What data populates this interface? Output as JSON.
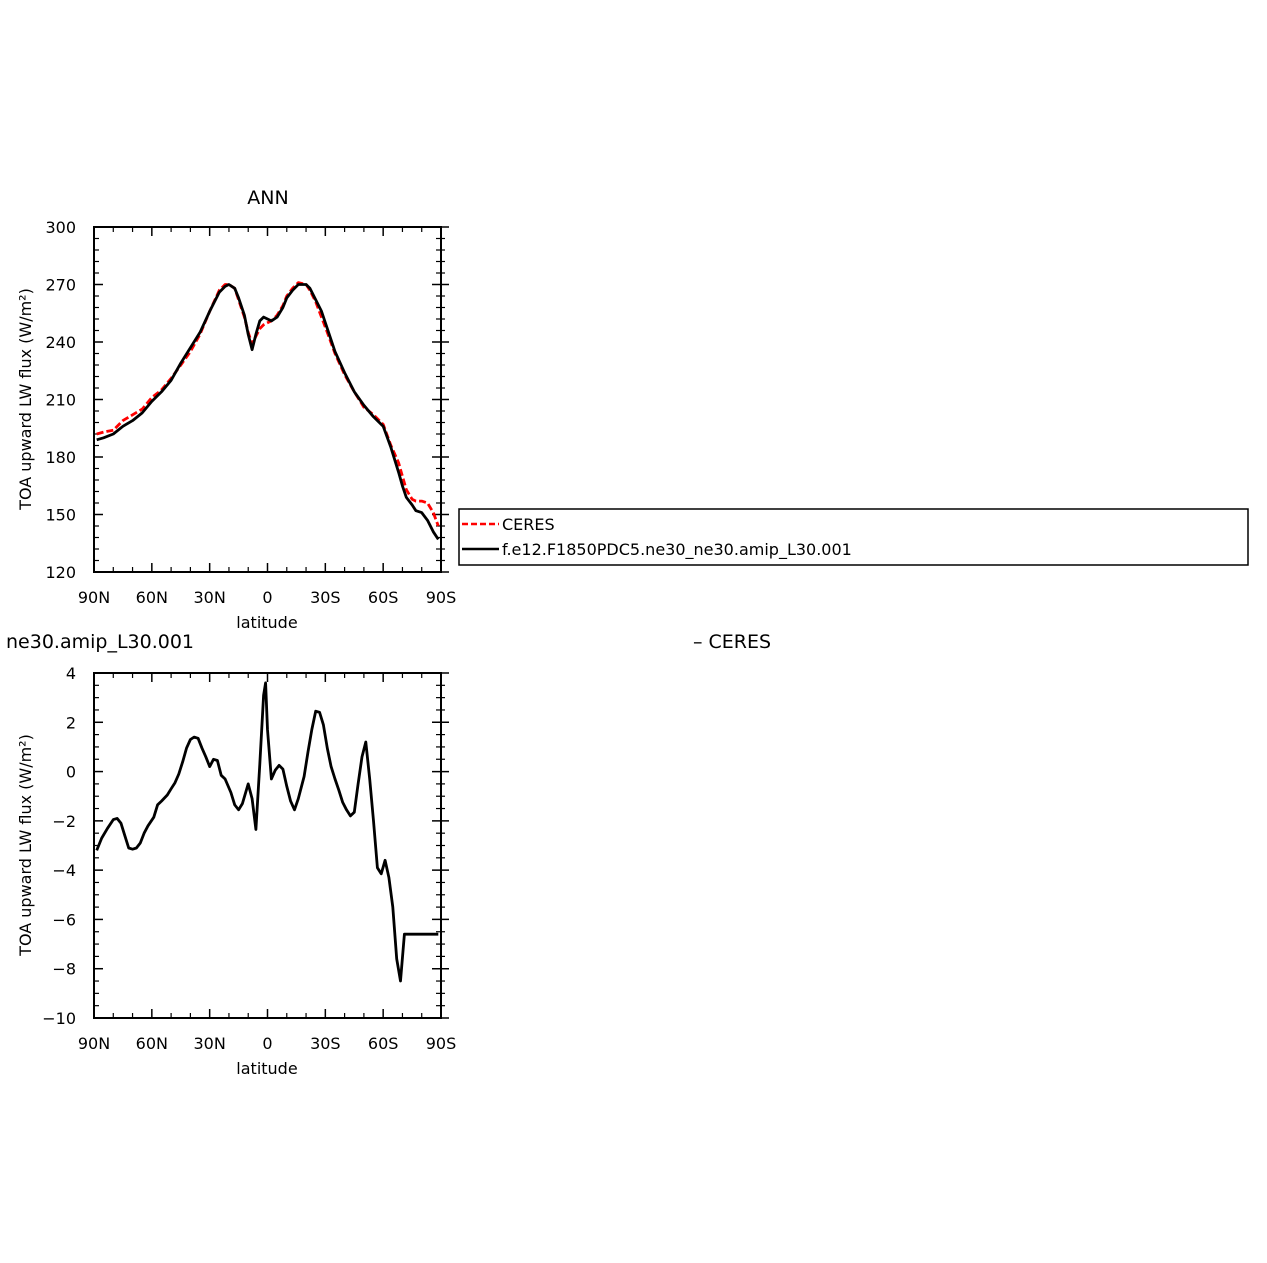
{
  "chart_data": [
    {
      "type": "line",
      "title": "ANN",
      "xlabel": "latitude",
      "ylabel": "TOA upward LW flux (W/m²)",
      "xlim": [
        90,
        -90
      ],
      "ylim": [
        120,
        300
      ],
      "xtick_values": [
        90,
        60,
        30,
        0,
        -30,
        -60,
        -90
      ],
      "xtick_labels": [
        "90N",
        "60N",
        "30N",
        "0",
        "30S",
        "60S",
        "90S"
      ],
      "yticks": [
        120,
        150,
        180,
        210,
        240,
        270,
        300
      ],
      "x": [
        88.6,
        85,
        80,
        75,
        70,
        65,
        60,
        55,
        50,
        45,
        40,
        35,
        30,
        25,
        22,
        20,
        17,
        15,
        12,
        10,
        8,
        6,
        4,
        2,
        0,
        -2,
        -5,
        -8,
        -10,
        -13,
        -16,
        -20,
        -22,
        -25,
        -28,
        -31,
        -35,
        -40,
        -45,
        -50,
        -55,
        -60,
        -64,
        -68,
        -70,
        -72,
        -75,
        -77,
        -80,
        -83,
        -86,
        -88.6
      ],
      "series": [
        {
          "name": "CERES",
          "color": "#ff0000",
          "dash": "dashed",
          "values": [
            192,
            193,
            194,
            199,
            202,
            205,
            211,
            215,
            221,
            228,
            235,
            244,
            256,
            267,
            270,
            270,
            268,
            262,
            253,
            245,
            239,
            243,
            247,
            249,
            250,
            251,
            254,
            259,
            264,
            268,
            271,
            270,
            267,
            261,
            253,
            245,
            234,
            223,
            214,
            206,
            202,
            197,
            186,
            177,
            170,
            163,
            158,
            157,
            157,
            156,
            151,
            144
          ]
        },
        {
          "name": "f.e12.F1850PDC5.ne30_ne30.amip_L30.001",
          "color": "#000000",
          "dash": "solid",
          "values": [
            189,
            190,
            192,
            196,
            199,
            203,
            209,
            214,
            220,
            229,
            237,
            245,
            256,
            266,
            269,
            270,
            268,
            263,
            254,
            244,
            236,
            244,
            251,
            253,
            252,
            251,
            253,
            258,
            263,
            267,
            270,
            270,
            268,
            262,
            256,
            247,
            235,
            224,
            214,
            207,
            201,
            196,
            185,
            172,
            165,
            159,
            155,
            152,
            151,
            147,
            141,
            137
          ]
        }
      ],
      "legend_position": "right"
    },
    {
      "type": "line",
      "title": "ne30.amip_L30.001",
      "title_right": "– CERES",
      "xlabel": "latitude",
      "ylabel": "TOA upward LW flux (W/m²)",
      "xlim": [
        90,
        -90
      ],
      "ylim": [
        -10,
        4
      ],
      "xtick_values": [
        90,
        60,
        30,
        0,
        -30,
        -60,
        -90
      ],
      "xtick_labels": [
        "90N",
        "60N",
        "30N",
        "0",
        "30S",
        "60S",
        "90S"
      ],
      "yticks": [
        -10,
        -8,
        -6,
        -4,
        -2,
        0,
        2,
        4
      ],
      "x": [
        88.6,
        86,
        83,
        80,
        78,
        76,
        74,
        72,
        70,
        68,
        66,
        64,
        62,
        59,
        57,
        55,
        52,
        50,
        48,
        46,
        44,
        42,
        40,
        38,
        36,
        34,
        32,
        30,
        28,
        26,
        24,
        22,
        19,
        17,
        15,
        13,
        10,
        8,
        6,
        4,
        2,
        1,
        0,
        -2,
        -4,
        -6,
        -8,
        -10,
        -12,
        -14,
        -16,
        -19,
        -21,
        -23,
        -25,
        -27,
        -29,
        -31,
        -33,
        -35,
        -37,
        -39,
        -41,
        -43,
        -45,
        -47,
        -49,
        -51,
        -53,
        -55,
        -57,
        -59,
        -61,
        -63,
        -65,
        -67,
        -69,
        -71,
        -73,
        -75,
        -77,
        -79,
        -81,
        -83,
        -85,
        -87,
        -88.6
      ],
      "series": [
        {
          "name": "",
          "color": "#000000",
          "dash": "solid",
          "values": [
            -3.2,
            -2.7,
            -2.3,
            -1.95,
            -1.9,
            -2.1,
            -2.6,
            -3.1,
            -3.15,
            -3.1,
            -2.9,
            -2.5,
            -2.2,
            -1.85,
            -1.35,
            -1.2,
            -0.95,
            -0.7,
            -0.45,
            -0.1,
            0.4,
            0.95,
            1.3,
            1.4,
            1.35,
            0.95,
            0.6,
            0.2,
            0.5,
            0.45,
            -0.15,
            -0.3,
            -0.85,
            -1.35,
            -1.55,
            -1.3,
            -0.5,
            -1.1,
            -2.35,
            0.3,
            3.1,
            3.6,
            1.7,
            -0.3,
            0.05,
            0.25,
            0.1,
            -0.6,
            -1.2,
            -1.55,
            -1.1,
            -0.2,
            0.8,
            1.7,
            2.45,
            2.4,
            1.9,
            0.95,
            0.2,
            -0.3,
            -0.75,
            -1.25,
            -1.55,
            -1.8,
            -1.65,
            -0.5,
            0.6,
            1.2,
            -0.3,
            -2.0,
            -3.9,
            -4.15,
            -3.6,
            -4.3,
            -5.5,
            -7.6,
            -8.5,
            -6.6,
            -6.6,
            -6.6,
            -6.6,
            -6.6,
            -6.6,
            -6.6,
            -6.6,
            -6.6,
            -6.6
          ]
        }
      ]
    }
  ]
}
